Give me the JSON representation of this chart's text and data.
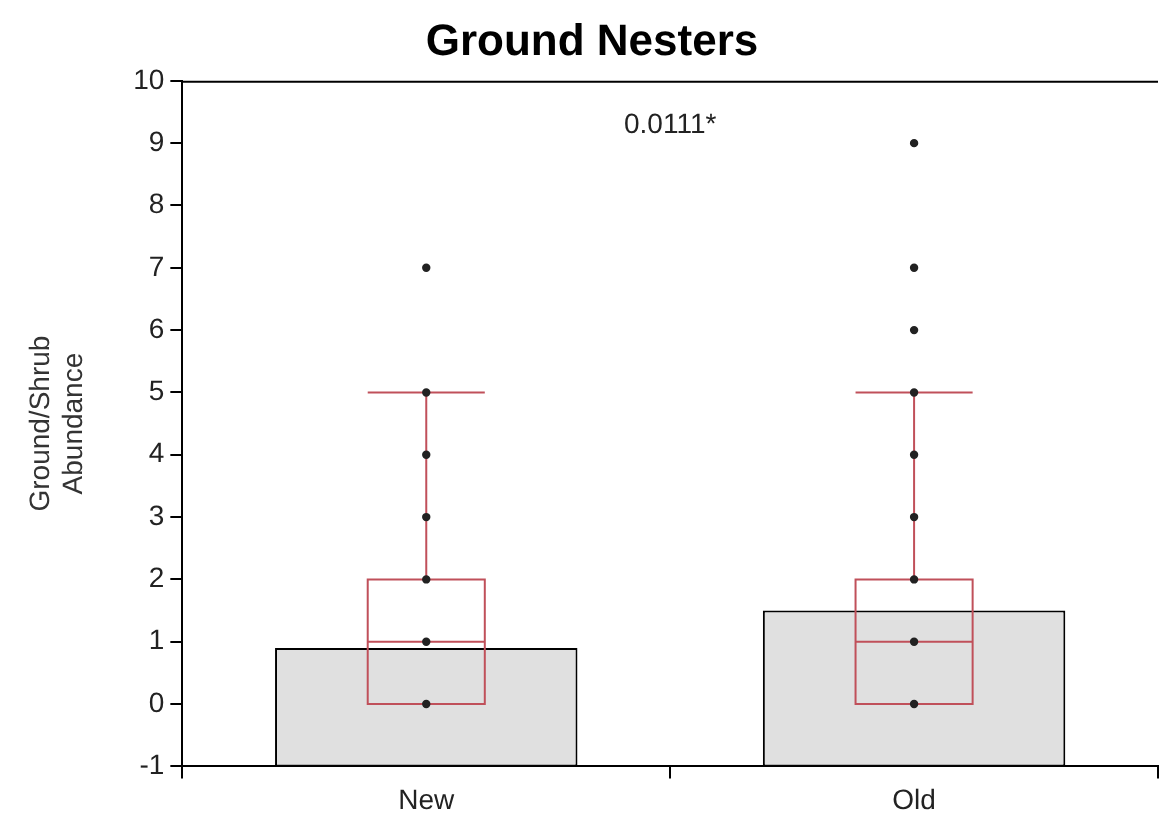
{
  "chart_data": {
    "type": "bar",
    "title": "Ground Nesters",
    "ylabel": "Ground/Shrub Abundance",
    "categories": [
      "New",
      "Old"
    ],
    "values": [
      1.9,
      2.5
    ],
    "base": [
      -1,
      -1
    ],
    "color": "#e0e0e0",
    "series": [
      {
        "type": "box",
        "color": "#c0505a",
        "boxes": [
          {
            "low": 0,
            "q1": 0,
            "median": 1,
            "q3": 2,
            "high": 5
          },
          {
            "low": 0,
            "q1": 0,
            "median": 1,
            "q3": 2,
            "high": 5
          }
        ]
      },
      {
        "type": "scatter",
        "color": "#222222",
        "x": [
          "New",
          "New",
          "New",
          "New",
          "New",
          "New",
          "New",
          "Old",
          "Old",
          "Old",
          "Old",
          "Old",
          "Old",
          "Old",
          "Old",
          "Old"
        ],
        "values": [
          0,
          1,
          2,
          3,
          4,
          5,
          7,
          0,
          1,
          2,
          3,
          4,
          5,
          6,
          7,
          9
        ]
      }
    ],
    "ylim": [
      -1,
      10
    ],
    "yticks": [
      -1,
      0,
      1,
      2,
      3,
      4,
      5,
      6,
      7,
      8,
      9,
      10
    ],
    "grid": false,
    "legend": false,
    "annotations": [
      "0.0111*"
    ]
  }
}
